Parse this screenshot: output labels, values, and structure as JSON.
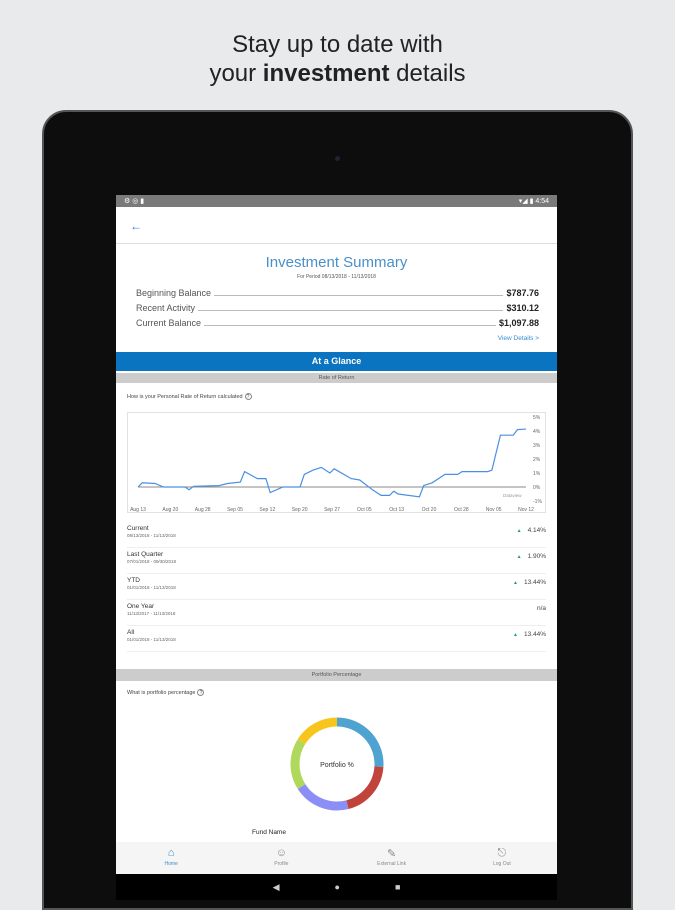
{
  "promo": {
    "line1": "Stay up to date with",
    "line2_pre": "your ",
    "line2_bold": "investment",
    "line2_post": " details"
  },
  "status_bar": {
    "time": "4:54"
  },
  "header": {
    "back_icon": "arrow-left-icon"
  },
  "summary": {
    "title": "Investment Summary",
    "period": "For Period 08/13/2018 - 11/13/2018",
    "rows": [
      {
        "label": "Beginning Balance",
        "value": "$787.76"
      },
      {
        "label": "Recent Activity",
        "value": "$310.12"
      },
      {
        "label": "Current Balance",
        "value": "$1,097.88"
      }
    ],
    "view_details": "View Details >"
  },
  "glance": {
    "title": "At a Glance",
    "ror_header": "Rate of Return",
    "ror_question": "How is your Personal Rate of Return calculated",
    "returns": [
      {
        "label": "Current",
        "dates": "08/13/2018 - 11/13/2018",
        "value": "4.14%",
        "up": true
      },
      {
        "label": "Last Quarter",
        "dates": "07/01/2018 - 09/30/2018",
        "value": "1.90%",
        "up": true
      },
      {
        "label": "YTD",
        "dates": "01/01/2018 - 11/13/2018",
        "value": "13.44%",
        "up": true
      },
      {
        "label": "One Year",
        "dates": "11/13/2017 - 11/13/2018",
        "value": "n/a",
        "up": false
      },
      {
        "label": "All",
        "dates": "01/01/2018 - 11/13/2018",
        "value": "13.44%",
        "up": true
      }
    ],
    "portfolio_header": "Portfolio Percentage",
    "portfolio_question": "What is portfolio percentage",
    "donut_label": "Portfolio %",
    "fund_name": "Fund Name"
  },
  "chart_data": [
    {
      "type": "line",
      "color": "#4a90e2",
      "watermark": "Dataview",
      "x_ticks": [
        "Aug 13",
        "Aug 20",
        "Aug 28",
        "Sep 05",
        "Sep 12",
        "Sep 20",
        "Sep 27",
        "Oct 05",
        "Oct 13",
        "Oct 20",
        "Oct 28",
        "Nov 05",
        "Nov 12"
      ],
      "y_ticks": [
        "5%",
        "4%",
        "3%",
        "2%",
        "1%",
        "0%",
        "-1%"
      ],
      "ylim": [
        -1,
        5
      ],
      "xlim": [
        "2018-08-13",
        "2018-11-12"
      ],
      "x": [
        "2018-08-13",
        "2018-08-14",
        "2018-08-17",
        "2018-08-19",
        "2018-08-24",
        "2018-08-25",
        "2018-08-26",
        "2018-09-01",
        "2018-09-03",
        "2018-09-06",
        "2018-09-07",
        "2018-09-10",
        "2018-09-12",
        "2018-09-13",
        "2018-09-16",
        "2018-09-20",
        "2018-09-21",
        "2018-09-23",
        "2018-09-25",
        "2018-09-27",
        "2018-09-28",
        "2018-10-02",
        "2018-10-04",
        "2018-10-07",
        "2018-10-09",
        "2018-10-11",
        "2018-10-12",
        "2018-10-13",
        "2018-10-18",
        "2018-10-19",
        "2018-10-21",
        "2018-10-24",
        "2018-10-27",
        "2018-10-28",
        "2018-11-03",
        "2018-11-04",
        "2018-11-06",
        "2018-11-09",
        "2018-11-10",
        "2018-11-12"
      ],
      "y": [
        0,
        0.3,
        0.25,
        0,
        0,
        -0.2,
        0.05,
        0.1,
        0.25,
        0.35,
        1.1,
        0.6,
        0.6,
        -0.4,
        0,
        0,
        0.9,
        1.2,
        1.4,
        1.0,
        1.3,
        0.6,
        0.5,
        -0.2,
        -0.6,
        -0.6,
        -0.3,
        -0.5,
        -0.7,
        0.1,
        0.3,
        0.9,
        0.9,
        1.1,
        1.1,
        1.2,
        3.7,
        3.7,
        4.1,
        4.14
      ]
    },
    {
      "type": "pie",
      "title": "Portfolio %",
      "values": [
        26,
        20,
        20,
        18,
        16
      ],
      "colors": [
        "#4fa3d1",
        "#c0433c",
        "#8b8ff5",
        "#b0d85a",
        "#f8c51c"
      ]
    }
  ],
  "nav": [
    {
      "label": "Home",
      "icon": "home-icon",
      "active": true
    },
    {
      "label": "Profile",
      "icon": "person-icon"
    },
    {
      "label": "External Link",
      "icon": "pencil-icon"
    },
    {
      "label": "Log Out",
      "icon": "logout-icon"
    }
  ]
}
